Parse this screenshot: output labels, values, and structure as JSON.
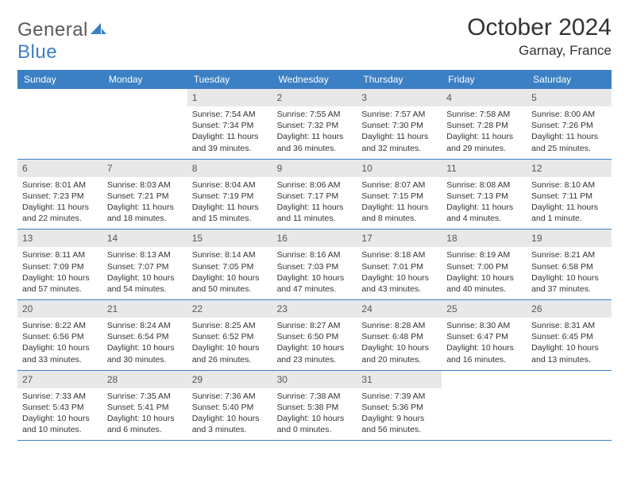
{
  "brand": {
    "text1": "General",
    "text2": "Blue"
  },
  "title": "October 2024",
  "location": "Garnay, France",
  "colors": {
    "header_bg": "#3b7fc4",
    "header_text": "#ffffff",
    "daynum_bg": "#e8e8e8",
    "body_text": "#333333",
    "rule": "#3b7fc4"
  },
  "days_of_week": [
    "Sunday",
    "Monday",
    "Tuesday",
    "Wednesday",
    "Thursday",
    "Friday",
    "Saturday"
  ],
  "weeks": [
    [
      null,
      null,
      {
        "n": "1",
        "sunrise": "7:54 AM",
        "sunset": "7:34 PM",
        "daylight": "11 hours and 39 minutes."
      },
      {
        "n": "2",
        "sunrise": "7:55 AM",
        "sunset": "7:32 PM",
        "daylight": "11 hours and 36 minutes."
      },
      {
        "n": "3",
        "sunrise": "7:57 AM",
        "sunset": "7:30 PM",
        "daylight": "11 hours and 32 minutes."
      },
      {
        "n": "4",
        "sunrise": "7:58 AM",
        "sunset": "7:28 PM",
        "daylight": "11 hours and 29 minutes."
      },
      {
        "n": "5",
        "sunrise": "8:00 AM",
        "sunset": "7:26 PM",
        "daylight": "11 hours and 25 minutes."
      }
    ],
    [
      {
        "n": "6",
        "sunrise": "8:01 AM",
        "sunset": "7:23 PM",
        "daylight": "11 hours and 22 minutes."
      },
      {
        "n": "7",
        "sunrise": "8:03 AM",
        "sunset": "7:21 PM",
        "daylight": "11 hours and 18 minutes."
      },
      {
        "n": "8",
        "sunrise": "8:04 AM",
        "sunset": "7:19 PM",
        "daylight": "11 hours and 15 minutes."
      },
      {
        "n": "9",
        "sunrise": "8:06 AM",
        "sunset": "7:17 PM",
        "daylight": "11 hours and 11 minutes."
      },
      {
        "n": "10",
        "sunrise": "8:07 AM",
        "sunset": "7:15 PM",
        "daylight": "11 hours and 8 minutes."
      },
      {
        "n": "11",
        "sunrise": "8:08 AM",
        "sunset": "7:13 PM",
        "daylight": "11 hours and 4 minutes."
      },
      {
        "n": "12",
        "sunrise": "8:10 AM",
        "sunset": "7:11 PM",
        "daylight": "11 hours and 1 minute."
      }
    ],
    [
      {
        "n": "13",
        "sunrise": "8:11 AM",
        "sunset": "7:09 PM",
        "daylight": "10 hours and 57 minutes."
      },
      {
        "n": "14",
        "sunrise": "8:13 AM",
        "sunset": "7:07 PM",
        "daylight": "10 hours and 54 minutes."
      },
      {
        "n": "15",
        "sunrise": "8:14 AM",
        "sunset": "7:05 PM",
        "daylight": "10 hours and 50 minutes."
      },
      {
        "n": "16",
        "sunrise": "8:16 AM",
        "sunset": "7:03 PM",
        "daylight": "10 hours and 47 minutes."
      },
      {
        "n": "17",
        "sunrise": "8:18 AM",
        "sunset": "7:01 PM",
        "daylight": "10 hours and 43 minutes."
      },
      {
        "n": "18",
        "sunrise": "8:19 AM",
        "sunset": "7:00 PM",
        "daylight": "10 hours and 40 minutes."
      },
      {
        "n": "19",
        "sunrise": "8:21 AM",
        "sunset": "6:58 PM",
        "daylight": "10 hours and 37 minutes."
      }
    ],
    [
      {
        "n": "20",
        "sunrise": "8:22 AM",
        "sunset": "6:56 PM",
        "daylight": "10 hours and 33 minutes."
      },
      {
        "n": "21",
        "sunrise": "8:24 AM",
        "sunset": "6:54 PM",
        "daylight": "10 hours and 30 minutes."
      },
      {
        "n": "22",
        "sunrise": "8:25 AM",
        "sunset": "6:52 PM",
        "daylight": "10 hours and 26 minutes."
      },
      {
        "n": "23",
        "sunrise": "8:27 AM",
        "sunset": "6:50 PM",
        "daylight": "10 hours and 23 minutes."
      },
      {
        "n": "24",
        "sunrise": "8:28 AM",
        "sunset": "6:48 PM",
        "daylight": "10 hours and 20 minutes."
      },
      {
        "n": "25",
        "sunrise": "8:30 AM",
        "sunset": "6:47 PM",
        "daylight": "10 hours and 16 minutes."
      },
      {
        "n": "26",
        "sunrise": "8:31 AM",
        "sunset": "6:45 PM",
        "daylight": "10 hours and 13 minutes."
      }
    ],
    [
      {
        "n": "27",
        "sunrise": "7:33 AM",
        "sunset": "5:43 PM",
        "daylight": "10 hours and 10 minutes."
      },
      {
        "n": "28",
        "sunrise": "7:35 AM",
        "sunset": "5:41 PM",
        "daylight": "10 hours and 6 minutes."
      },
      {
        "n": "29",
        "sunrise": "7:36 AM",
        "sunset": "5:40 PM",
        "daylight": "10 hours and 3 minutes."
      },
      {
        "n": "30",
        "sunrise": "7:38 AM",
        "sunset": "5:38 PM",
        "daylight": "10 hours and 0 minutes."
      },
      {
        "n": "31",
        "sunrise": "7:39 AM",
        "sunset": "5:36 PM",
        "daylight": "9 hours and 56 minutes."
      },
      null,
      null
    ]
  ],
  "labels": {
    "sunrise_prefix": "Sunrise: ",
    "sunset_prefix": "Sunset: ",
    "daylight_prefix": "Daylight: "
  }
}
